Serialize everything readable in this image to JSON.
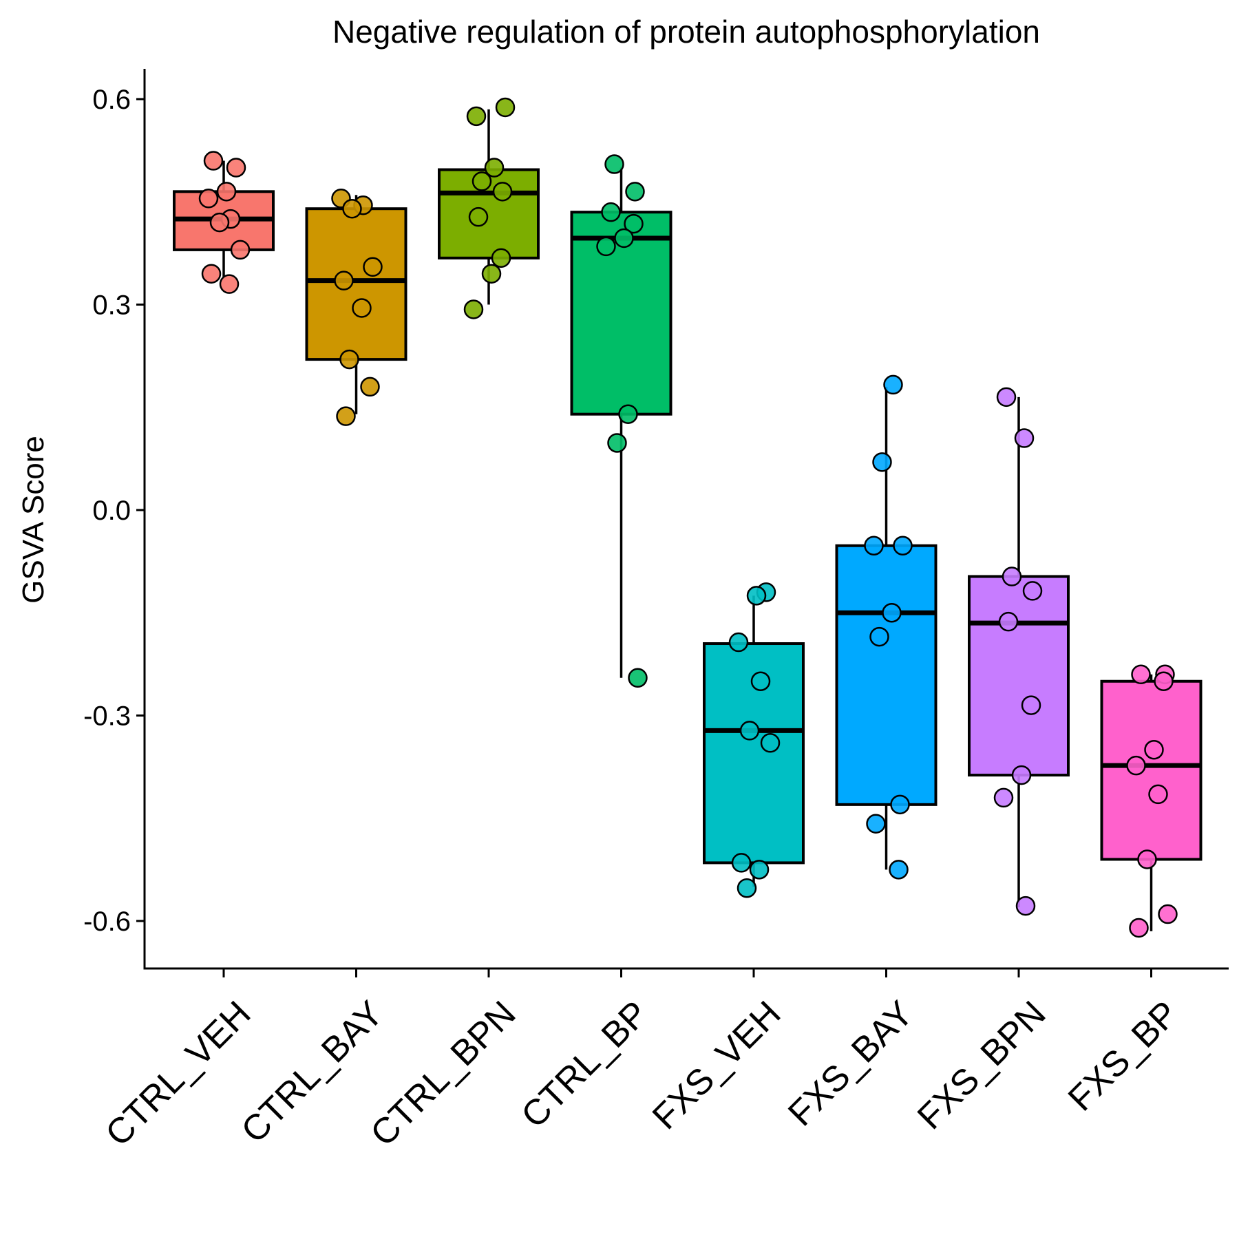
{
  "chart_data": {
    "type": "box",
    "title": "Negative regulation of protein autophosphorylation",
    "xlabel": "",
    "ylabel": "GSVA Score",
    "ylim": [
      -0.67,
      0.64
    ],
    "yticks": [
      -0.6,
      -0.3,
      0.0,
      0.3,
      0.6
    ],
    "ytick_labels": [
      "-0.6",
      "-0.3",
      "0.0",
      "0.3",
      "0.6"
    ],
    "grid": false,
    "legend": "none",
    "groups": [
      {
        "name": "CTRL_VEH",
        "color": "#F8766D",
        "q1": 0.38,
        "median": 0.425,
        "q3": 0.465,
        "whisker_low": 0.34,
        "whisker_high": 0.51,
        "points": [
          0.51,
          0.5,
          0.465,
          0.455,
          0.425,
          0.42,
          0.38,
          0.345,
          0.33
        ]
      },
      {
        "name": "CTRL_BAY",
        "color": "#CD9600",
        "q1": 0.22,
        "median": 0.335,
        "q3": 0.44,
        "whisker_low": 0.14,
        "whisker_high": 0.46,
        "points": [
          0.455,
          0.445,
          0.44,
          0.355,
          0.335,
          0.295,
          0.22,
          0.18,
          0.137
        ]
      },
      {
        "name": "CTRL_BPN",
        "color": "#7CAE00",
        "q1": 0.368,
        "median": 0.463,
        "q3": 0.497,
        "whisker_low": 0.3,
        "whisker_high": 0.585,
        "points": [
          0.588,
          0.575,
          0.5,
          0.48,
          0.465,
          0.428,
          0.368,
          0.345,
          0.293
        ]
      },
      {
        "name": "CTRL_BP",
        "color": "#00BE67",
        "q1": 0.14,
        "median": 0.397,
        "q3": 0.435,
        "whisker_low": -0.245,
        "whisker_high": 0.5,
        "points": [
          0.505,
          0.465,
          0.435,
          0.418,
          0.397,
          0.385,
          0.14,
          0.098,
          -0.245
        ]
      },
      {
        "name": "FXS_VEH",
        "color": "#00BFC4",
        "q1": -0.515,
        "median": -0.322,
        "q3": -0.195,
        "whisker_low": -0.55,
        "whisker_high": -0.125,
        "points": [
          -0.12,
          -0.125,
          -0.193,
          -0.25,
          -0.322,
          -0.34,
          -0.515,
          -0.525,
          -0.552
        ]
      },
      {
        "name": "FXS_BAY",
        "color": "#00A9FF",
        "q1": -0.43,
        "median": -0.15,
        "q3": -0.052,
        "whisker_low": -0.525,
        "whisker_high": 0.18,
        "points": [
          0.183,
          0.07,
          -0.052,
          -0.052,
          -0.15,
          -0.185,
          -0.43,
          -0.458,
          -0.525
        ]
      },
      {
        "name": "FXS_BPN",
        "color": "#C77CFF",
        "q1": -0.387,
        "median": -0.165,
        "q3": -0.097,
        "whisker_low": -0.58,
        "whisker_high": 0.165,
        "points": [
          0.165,
          0.105,
          -0.097,
          -0.118,
          -0.163,
          -0.285,
          -0.387,
          -0.42,
          -0.578
        ]
      },
      {
        "name": "FXS_BP",
        "color": "#FF61CC",
        "q1": -0.51,
        "median": -0.373,
        "q3": -0.25,
        "whisker_low": -0.615,
        "whisker_high": -0.24,
        "points": [
          -0.24,
          -0.24,
          -0.25,
          -0.35,
          -0.373,
          -0.415,
          -0.51,
          -0.59,
          -0.61
        ]
      }
    ]
  }
}
